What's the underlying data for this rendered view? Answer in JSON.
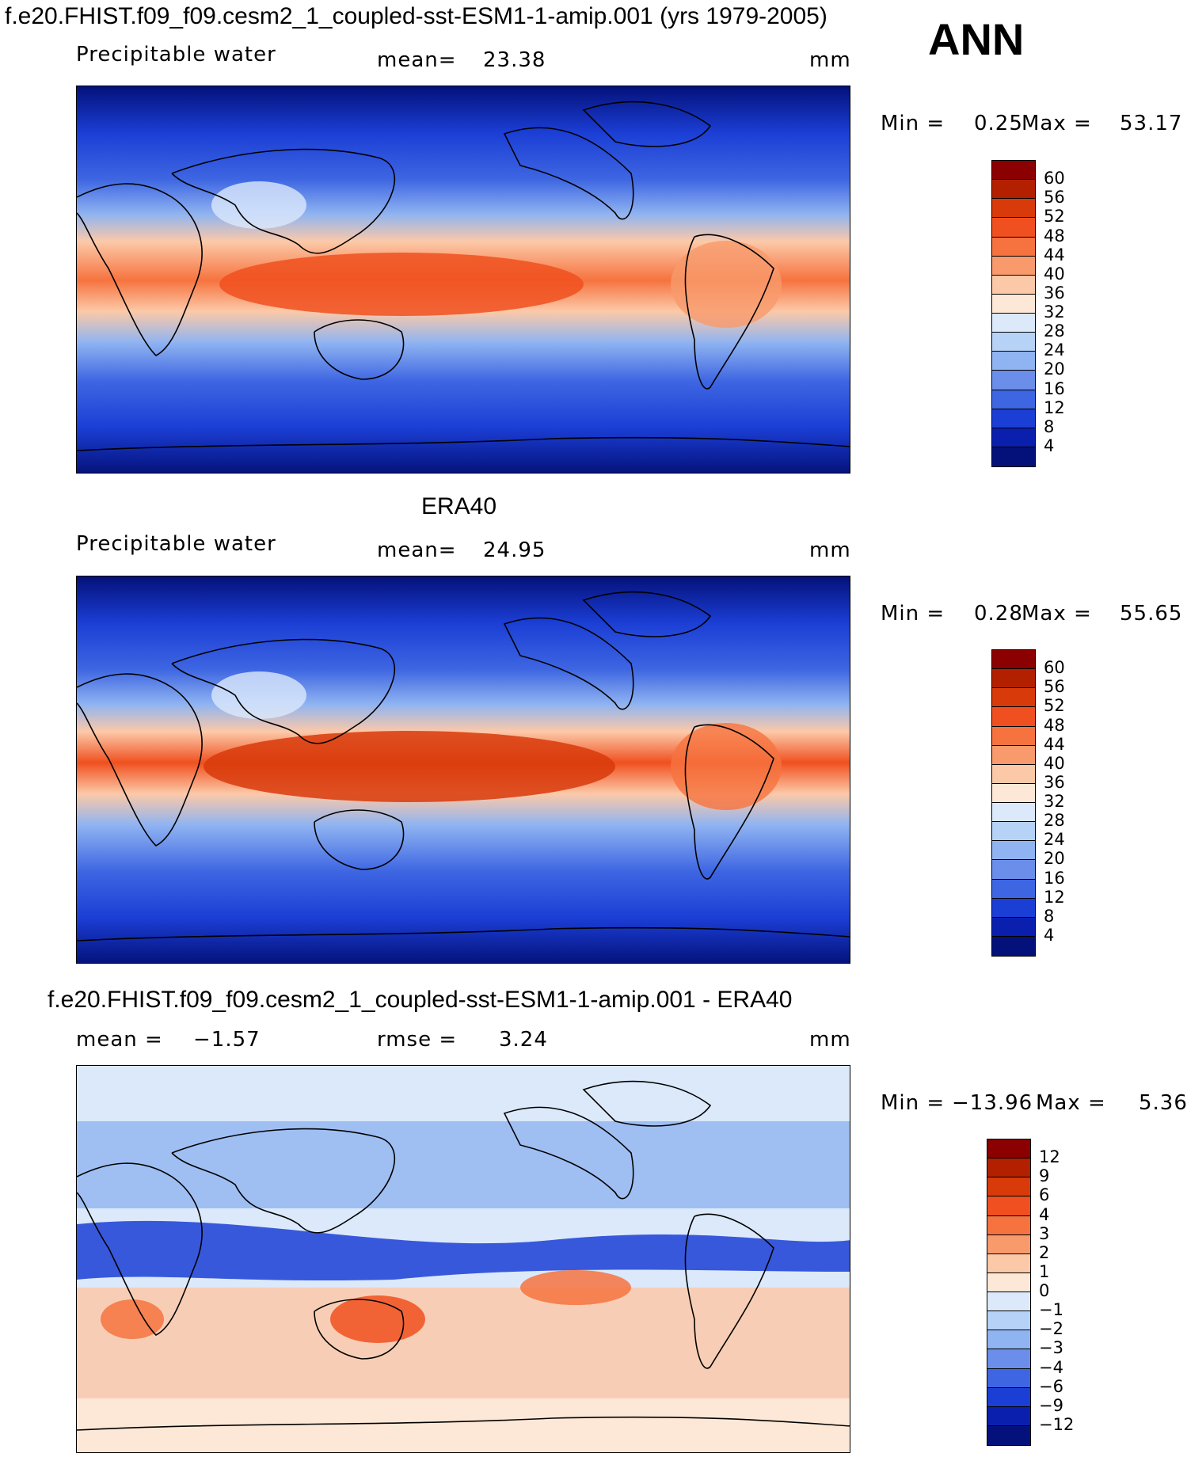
{
  "header": {
    "case_title": "f.e20.FHIST.f09_f09.cesm2_1_coupled-sst-ESM1-1-amip.001 (yrs 1979-2005)",
    "season": "ANN"
  },
  "panels": [
    {
      "variable": "Precipitable water",
      "mean_label": "mean=",
      "mean_value": "23.38",
      "units": "mm",
      "min_label": "Min =",
      "min_value": "0.25",
      "max_label": "Max =",
      "max_value": "53.17",
      "levels": [
        "60",
        "56",
        "52",
        "48",
        "44",
        "40",
        "36",
        "32",
        "28",
        "24",
        "20",
        "16",
        "12",
        "8",
        "4"
      ]
    },
    {
      "source_title": "ERA40",
      "variable": "Precipitable water",
      "mean_label": "mean=",
      "mean_value": "24.95",
      "units": "mm",
      "min_label": "Min =",
      "min_value": "0.28",
      "max_label": "Max =",
      "max_value": "55.65",
      "levels": [
        "60",
        "56",
        "52",
        "48",
        "44",
        "40",
        "36",
        "32",
        "28",
        "24",
        "20",
        "16",
        "12",
        "8",
        "4"
      ]
    },
    {
      "diff_title": "f.e20.FHIST.f09_f09.cesm2_1_coupled-sst-ESM1-1-amip.001 - ERA40",
      "mean_label": "mean =",
      "mean_value": "−1.57",
      "rmse_label": "rmse =",
      "rmse_value": "3.24",
      "units": "mm",
      "min_label": "Min =",
      "min_value": "−13.96",
      "max_label": "Max =",
      "max_value": "5.36",
      "levels": [
        "12",
        "9",
        "6",
        "4",
        "3",
        "2",
        "1",
        "0",
        "−1",
        "−2",
        "−3",
        "−4",
        "−6",
        "−9",
        "−12"
      ]
    }
  ],
  "colors": {
    "abs_scale": [
      "#8b0000",
      "#b22000",
      "#d83a0a",
      "#f0501f",
      "#f6733f",
      "#f89a6c",
      "#fcc9a8",
      "#fde8d7",
      "#dbe9fb",
      "#b7d2f7",
      "#90b4f1",
      "#6a8ee9",
      "#3e66e2",
      "#1b3ed5",
      "#0a1fae",
      "#04117a"
    ],
    "diff_scale": [
      "#8b0000",
      "#b22000",
      "#d83a0a",
      "#f0501f",
      "#f6733f",
      "#f89a6c",
      "#fcc9a8",
      "#fde8d7",
      "#dbe9fb",
      "#b7d2f7",
      "#90b4f1",
      "#6a8ee9",
      "#3e66e2",
      "#1b3ed5",
      "#0a1fae",
      "#04117a"
    ],
    "coast": "#000000"
  }
}
